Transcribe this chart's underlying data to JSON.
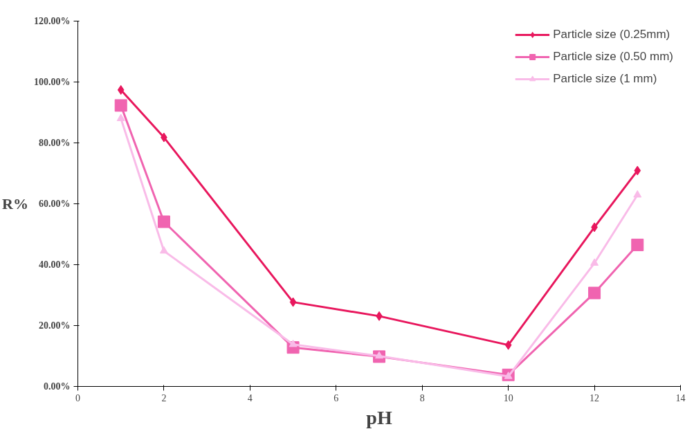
{
  "chart_data": {
    "type": "line",
    "xlabel": "pH",
    "ylabel": "R%",
    "xlim": [
      0,
      14
    ],
    "xticks": [
      0,
      2,
      4,
      6,
      8,
      10,
      12,
      14
    ],
    "ylim": [
      0,
      120
    ],
    "yticks": [
      {
        "value": 0,
        "label": "0.00%"
      },
      {
        "value": 20,
        "label": "20.00%"
      },
      {
        "value": 40,
        "label": "40.00%"
      },
      {
        "value": 60,
        "label": "60.00%"
      },
      {
        "value": 80,
        "label": "80.00%"
      },
      {
        "value": 100,
        "label": "100.00%"
      },
      {
        "value": 120,
        "label": "120.00%"
      }
    ],
    "grid": false,
    "legend": "top right",
    "line_style": "solid",
    "x": [
      1,
      2,
      5,
      7,
      10,
      12,
      13
    ],
    "series": [
      {
        "name": "Particle size (0.25mm)",
        "color": "#e8175d",
        "marker": "diamond",
        "values": [
          97.4,
          81.8,
          27.7,
          23.1,
          13.6,
          52.3,
          70.9
        ]
      },
      {
        "name": "Particle size (0.50 mm)",
        "color": "#f064b0",
        "marker": "square",
        "values": [
          92.3,
          54.1,
          12.8,
          9.8,
          3.8,
          30.7,
          46.5
        ]
      },
      {
        "name": "Particle size (1 mm)",
        "color": "#f9bbe8",
        "marker": "triangle",
        "values": [
          88.0,
          44.5,
          13.8,
          10.0,
          3.3,
          40.5,
          62.9
        ]
      }
    ]
  }
}
